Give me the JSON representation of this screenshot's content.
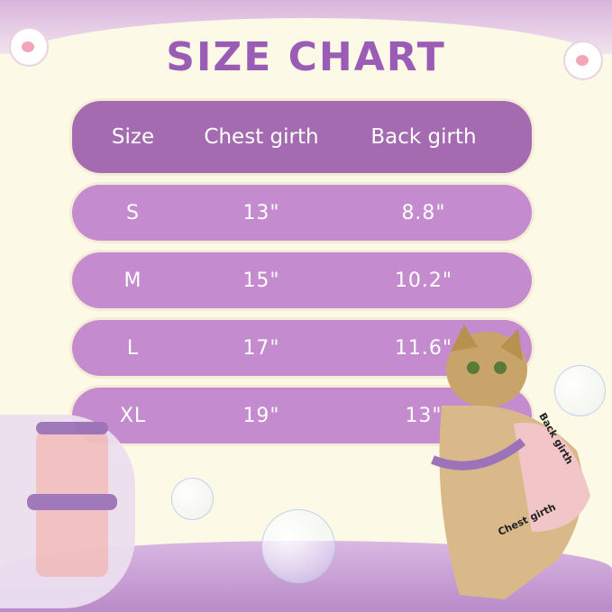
{
  "title": "SIZE CHART",
  "table": {
    "headers": [
      "Size",
      "Chest girth",
      "Back girth"
    ],
    "rows": [
      [
        "S",
        "13\"",
        "8.8\""
      ],
      [
        "M",
        "15\"",
        "10.2\""
      ],
      [
        "L",
        "17\"",
        "11.6\""
      ],
      [
        "XL",
        "19\"",
        "13\""
      ]
    ]
  },
  "cat_labels": {
    "back": "Back girth",
    "chest": "Chest girth"
  },
  "colors": {
    "title": "#9b5cb5",
    "header_row": "#a56bb0",
    "data_row": "#c48bce",
    "background": "#fcfae6"
  }
}
